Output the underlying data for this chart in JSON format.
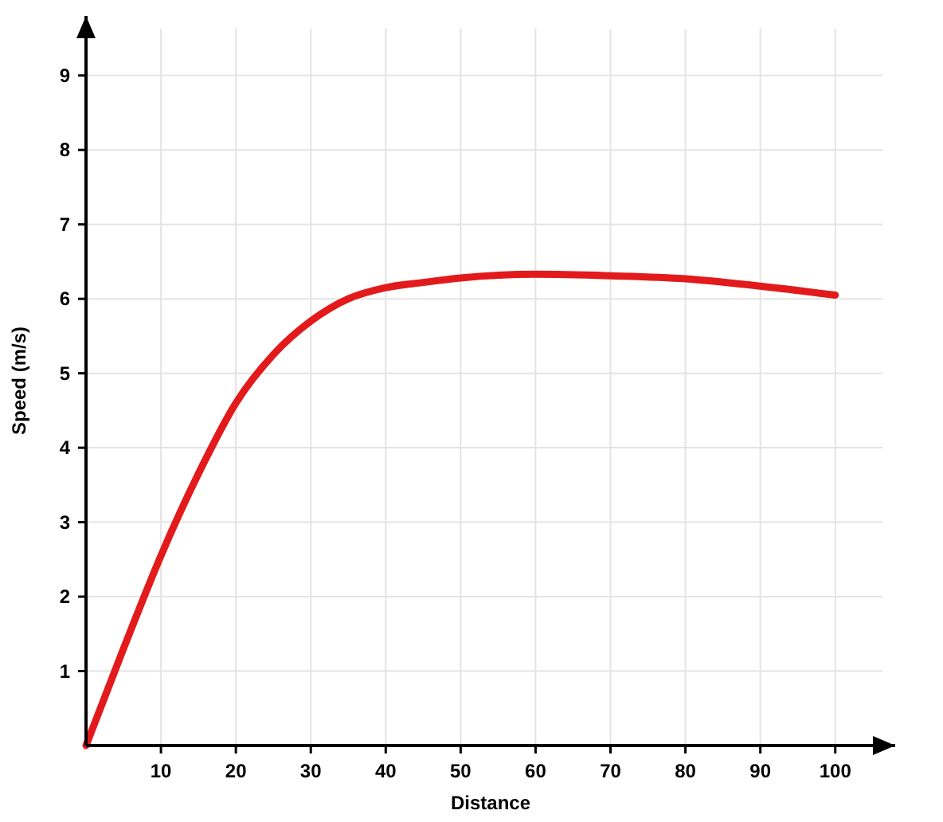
{
  "chart_data": {
    "type": "line",
    "xlabel": "Distance",
    "ylabel": "Speed (m/s)",
    "x": [
      0,
      5,
      10,
      15,
      20,
      25,
      30,
      35,
      40,
      45,
      50,
      60,
      70,
      80,
      90,
      100
    ],
    "series": [
      {
        "color": "#e31a1c",
        "values": [
          0,
          1.3,
          2.55,
          3.65,
          4.6,
          5.25,
          5.7,
          6.0,
          6.15,
          6.22,
          6.28,
          6.33,
          6.31,
          6.27,
          6.17,
          6.05
        ]
      }
    ],
    "xlim": [
      0,
      108
    ],
    "ylim": [
      0,
      9.8
    ],
    "xticks": [
      10,
      20,
      30,
      40,
      50,
      60,
      70,
      80,
      90,
      100
    ],
    "yticks": [
      1,
      2,
      3,
      4,
      5,
      6,
      7,
      8,
      9
    ],
    "grid": true,
    "marker": "none",
    "line_style": "solid"
  }
}
